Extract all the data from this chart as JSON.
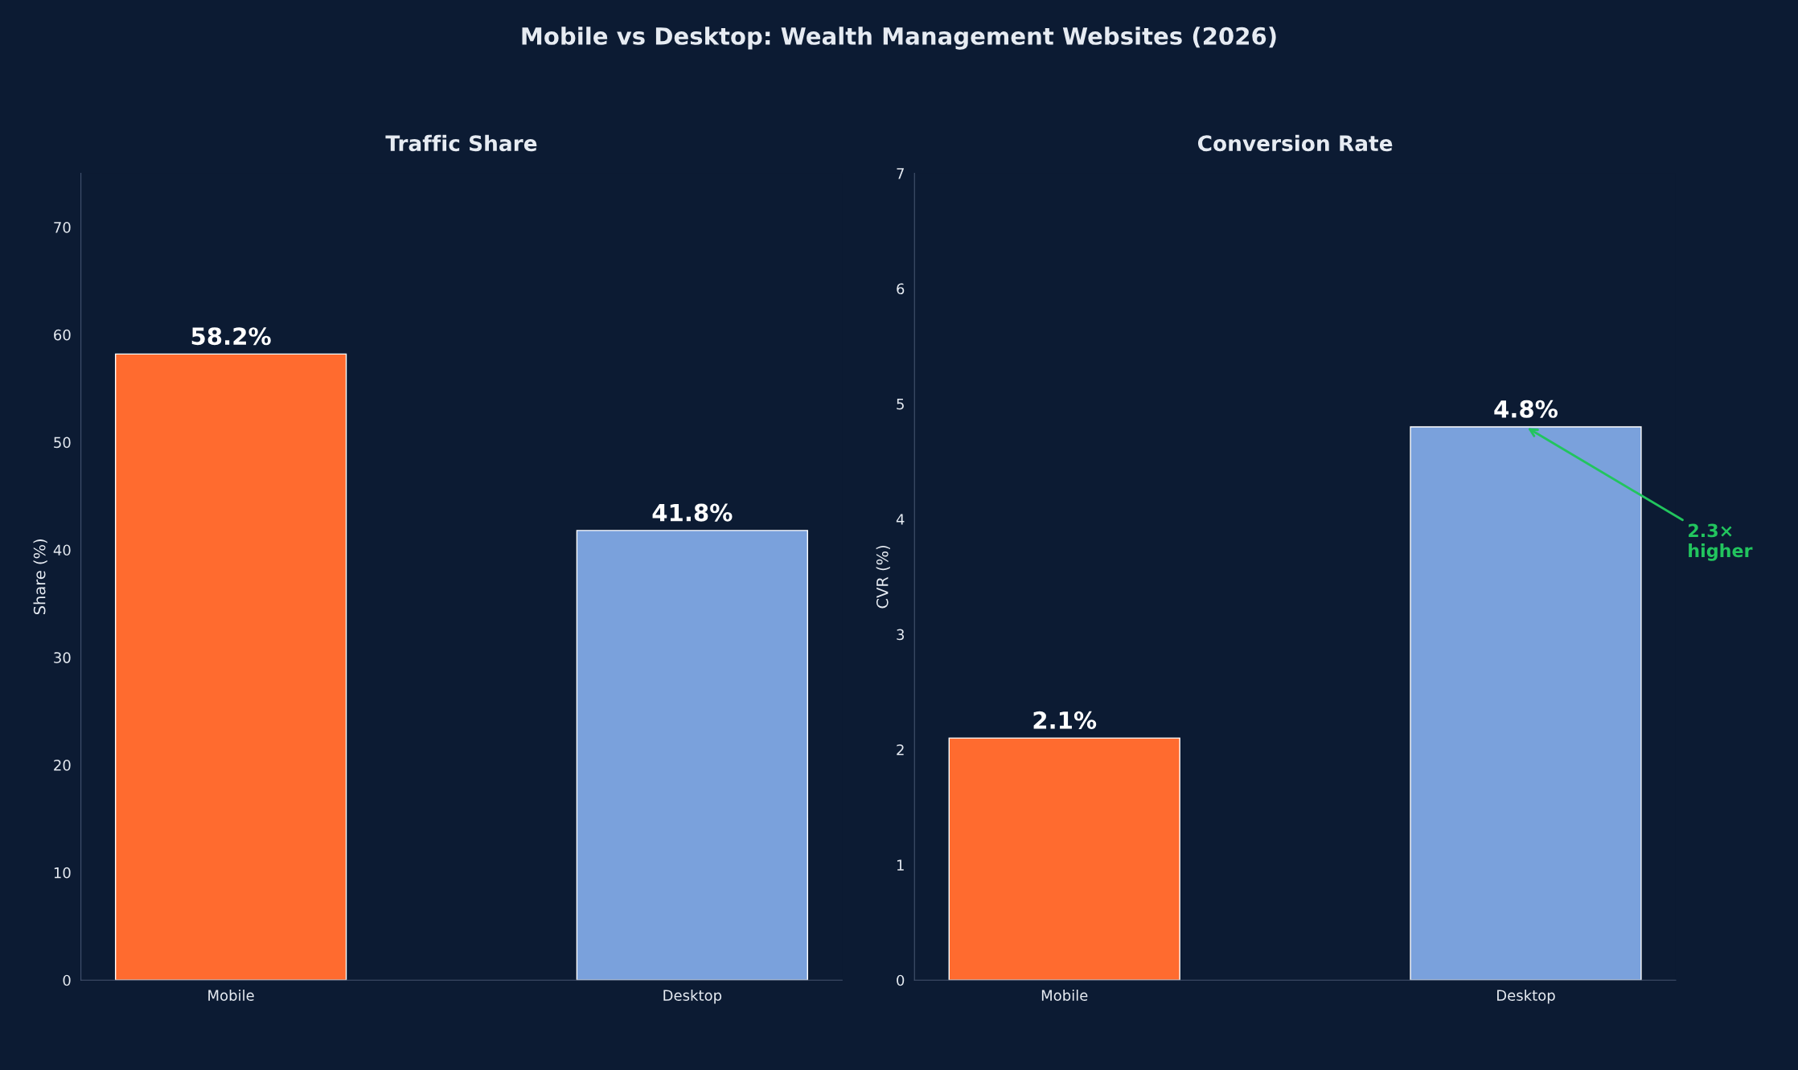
{
  "chart_data": [
    {
      "type": "bar",
      "title": "Mobile vs Desktop: Wealth Management Websites (2026)",
      "subtitle": "Traffic Share",
      "ylabel": "Share (%)",
      "categories": [
        "Mobile",
        "Desktop"
      ],
      "values": [
        58.2,
        41.8
      ],
      "colors": [
        "#ff6b2f",
        "#7aa1dc"
      ],
      "value_labels": [
        "58.2%",
        "41.8%"
      ],
      "ylim": [
        0,
        75
      ],
      "yticks": [
        0,
        10,
        20,
        30,
        40,
        50,
        60,
        70
      ],
      "grid": false,
      "legend": false
    },
    {
      "type": "bar",
      "subtitle": "Conversion Rate",
      "ylabel": "CVR (%)",
      "categories": [
        "Mobile",
        "Desktop"
      ],
      "values": [
        2.1,
        4.8
      ],
      "colors": [
        "#ff6b2f",
        "#7aa1dc"
      ],
      "value_labels": [
        "2.1%",
        "4.8%"
      ],
      "ylim": [
        0,
        7
      ],
      "yticks": [
        0,
        1,
        2,
        3,
        4,
        5,
        6,
        7
      ],
      "grid": false,
      "legend": false,
      "annotations": [
        {
          "text": "2.3×\nhigher",
          "x": "Desktop",
          "y": 4.8
        }
      ]
    }
  ]
}
